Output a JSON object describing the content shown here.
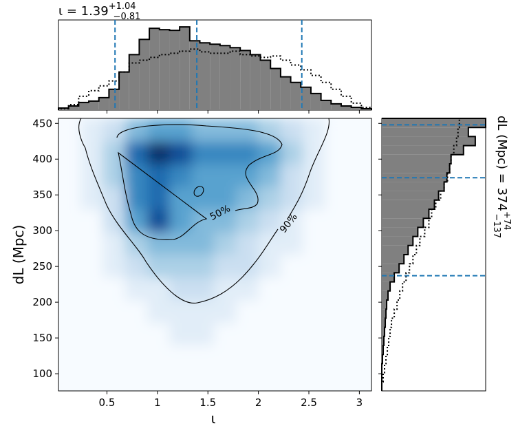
{
  "chart_data": [
    {
      "type": "heatmap",
      "x_label": "ι",
      "y_label": "dL (Mpc)",
      "xlim": [
        0.02,
        3.12
      ],
      "ylim": [
        76,
        457
      ],
      "xticks": [
        0.5,
        1.0,
        1.5,
        2.0,
        2.5,
        3.0
      ],
      "yticks": [
        100,
        150,
        200,
        250,
        300,
        350,
        400,
        450
      ],
      "x_bins": [
        0.02,
        0.24,
        0.46,
        0.68,
        0.9,
        1.12,
        1.34,
        1.56,
        1.78,
        2.0,
        2.22,
        2.44,
        2.66,
        2.88,
        3.12
      ],
      "y_bins": [
        76,
        108,
        140,
        171,
        203,
        235,
        267,
        298,
        330,
        362,
        393,
        425,
        457
      ],
      "z": [
        [
          0,
          0,
          0,
          0,
          0,
          0,
          0,
          0,
          0,
          0,
          0,
          0,
          0,
          0
        ],
        [
          0,
          0,
          0,
          0,
          0,
          0,
          0,
          0,
          0,
          0,
          0,
          0,
          0,
          0
        ],
        [
          0,
          0,
          0,
          0,
          0,
          1,
          1,
          0,
          0,
          0,
          0,
          0,
          0,
          0
        ],
        [
          0,
          0,
          0,
          0,
          1,
          1,
          1,
          1,
          0,
          0,
          0,
          0,
          0,
          0
        ],
        [
          0,
          0,
          0,
          1,
          1,
          2,
          2,
          1,
          1,
          0,
          0,
          0,
          0,
          0
        ],
        [
          0,
          0,
          1,
          2,
          3,
          3,
          3,
          2,
          2,
          1,
          0,
          0,
          0,
          0
        ],
        [
          0,
          0,
          1,
          3,
          4,
          4,
          4,
          3,
          2,
          1,
          1,
          0,
          0,
          0
        ],
        [
          0,
          0,
          2,
          5,
          8,
          5,
          4,
          4,
          3,
          2,
          1,
          0,
          0,
          0
        ],
        [
          0,
          1,
          2,
          6,
          7,
          5,
          5,
          5,
          4,
          3,
          2,
          1,
          0,
          0
        ],
        [
          0,
          1,
          3,
          6,
          7,
          6,
          5,
          5,
          5,
          4,
          2,
          1,
          0,
          0
        ],
        [
          0,
          1,
          3,
          7,
          9,
          8,
          6,
          6,
          6,
          5,
          3,
          1,
          0,
          0
        ],
        [
          0,
          1,
          2,
          4,
          5,
          5,
          4,
          4,
          4,
          3,
          2,
          1,
          0,
          0
        ]
      ],
      "zlim": [
        0,
        9
      ],
      "contour_labels": [
        "50%",
        "90%"
      ]
    },
    {
      "type": "histogram",
      "title_symbol": "ι = ",
      "title_value": "1.39",
      "title_upper": "+1.04",
      "title_lower": "−0.81",
      "bins": [
        0.02,
        0.12,
        0.22,
        0.32,
        0.42,
        0.52,
        0.62,
        0.72,
        0.82,
        0.92,
        1.02,
        1.12,
        1.22,
        1.32,
        1.42,
        1.52,
        1.62,
        1.72,
        1.82,
        1.92,
        2.02,
        2.12,
        2.22,
        2.32,
        2.42,
        2.52,
        2.62,
        2.72,
        2.82,
        2.92,
        3.02,
        3.12
      ],
      "values": [
        3,
        6,
        11,
        13,
        18,
        30,
        55,
        80,
        102,
        118,
        116,
        115,
        120,
        100,
        97,
        95,
        93,
        90,
        86,
        80,
        72,
        60,
        48,
        40,
        33,
        24,
        14,
        9,
        6,
        4,
        2
      ],
      "values_dotted": [
        2,
        8,
        20,
        28,
        35,
        42,
        55,
        68,
        72,
        76,
        80,
        82,
        85,
        88,
        84,
        82,
        82,
        85,
        80,
        78,
        76,
        78,
        72,
        65,
        58,
        50,
        40,
        30,
        20,
        10,
        4
      ],
      "quantiles": [
        0.58,
        1.39,
        2.43
      ],
      "ylim": [
        0,
        130
      ],
      "color": "#808080",
      "line_color": "#1f77b4"
    },
    {
      "type": "histogram",
      "label_prefix": "dL (Mpc) = ",
      "label_value": "374",
      "label_upper": "+74",
      "label_lower": "−137",
      "bins": [
        76,
        88.7,
        101.4,
        114.1,
        126.8,
        139.5,
        152.2,
        164.9,
        177.6,
        190.3,
        203,
        215.7,
        228.4,
        241.1,
        253.8,
        266.5,
        279.2,
        291.9,
        304.6,
        317.3,
        330,
        342.7,
        355.4,
        368.1,
        380.8,
        393.5,
        406.2,
        418.9,
        431.6,
        444.3,
        457
      ],
      "values": [
        0,
        0,
        0,
        1,
        2,
        3,
        4,
        5,
        6,
        7,
        9,
        12,
        18,
        25,
        32,
        38,
        45,
        52,
        60,
        68,
        76,
        82,
        90,
        94,
        98,
        100,
        118,
        135,
        125,
        150
      ],
      "values_dotted": [
        0,
        2,
        4,
        6,
        8,
        10,
        12,
        14,
        18,
        22,
        26,
        30,
        35,
        40,
        45,
        50,
        55,
        62,
        68,
        72,
        78,
        85,
        90,
        95,
        98,
        100,
        104,
        108,
        110,
        112
      ],
      "quantiles": [
        237,
        374,
        448
      ],
      "xlim": [
        0,
        150
      ],
      "color": "#808080",
      "line_color": "#1f77b4"
    }
  ]
}
